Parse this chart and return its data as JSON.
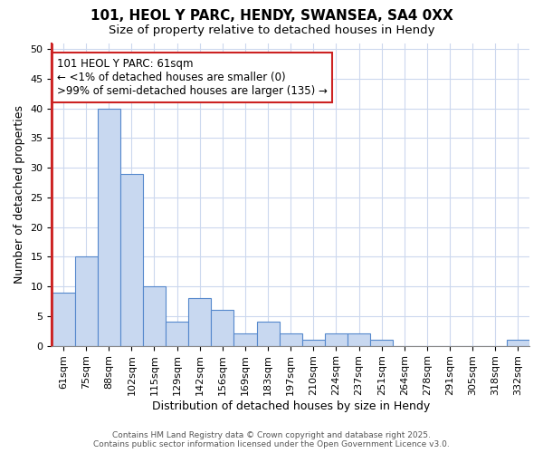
{
  "title_line1": "101, HEOL Y PARC, HENDY, SWANSEA, SA4 0XX",
  "title_line2": "Size of property relative to detached houses in Hendy",
  "xlabel": "Distribution of detached houses by size in Hendy",
  "ylabel": "Number of detached properties",
  "categories": [
    "61sqm",
    "75sqm",
    "88sqm",
    "102sqm",
    "115sqm",
    "129sqm",
    "142sqm",
    "156sqm",
    "169sqm",
    "183sqm",
    "197sqm",
    "210sqm",
    "224sqm",
    "237sqm",
    "251sqm",
    "264sqm",
    "278sqm",
    "291sqm",
    "305sqm",
    "318sqm",
    "332sqm"
  ],
  "values": [
    9,
    15,
    40,
    29,
    10,
    4,
    8,
    6,
    2,
    4,
    2,
    1,
    2,
    2,
    1,
    0,
    0,
    0,
    0,
    0,
    1
  ],
  "bar_fill_color": "#c8d8f0",
  "bar_edge_color": "#5588cc",
  "highlight_color": "#cc2222",
  "annotation_text": "101 HEOL Y PARC: 61sqm\n← <1% of detached houses are smaller (0)\n>99% of semi-detached houses are larger (135) →",
  "annotation_box_facecolor": "#ffffff",
  "annotation_box_edgecolor": "#cc2222",
  "plot_bg_color": "#ffffff",
  "fig_bg_color": "#ffffff",
  "ylim": [
    0,
    51
  ],
  "yticks": [
    0,
    5,
    10,
    15,
    20,
    25,
    30,
    35,
    40,
    45,
    50
  ],
  "grid_color": "#ccd8ee",
  "footer_text": "Contains HM Land Registry data © Crown copyright and database right 2025.\nContains public sector information licensed under the Open Government Licence v3.0.",
  "title_fontsize": 11,
  "subtitle_fontsize": 9.5,
  "axis_label_fontsize": 9,
  "tick_fontsize": 8,
  "annotation_fontsize": 8.5,
  "footer_fontsize": 6.5
}
